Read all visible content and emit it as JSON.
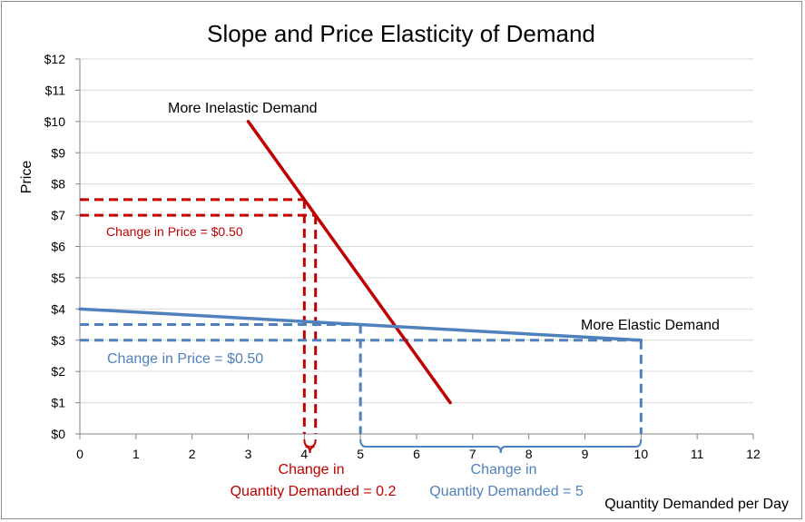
{
  "chart_data": {
    "type": "line",
    "title": "Slope and Price Elasticity of Demand",
    "xlabel": "Quantity Demanded per Day",
    "ylabel": "Price",
    "xlim": [
      0,
      12
    ],
    "ylim": [
      0,
      12
    ],
    "x_ticks": [
      "0",
      "1",
      "2",
      "3",
      "4",
      "5",
      "6",
      "7",
      "8",
      "9",
      "10",
      "11",
      "12"
    ],
    "y_ticks": [
      "$0",
      "$1",
      "$2",
      "$3",
      "$4",
      "$5",
      "$6",
      "$7",
      "$8",
      "$9",
      "$10",
      "$11",
      "$12"
    ],
    "grid": "horizontal",
    "colors": {
      "inelastic": "#c00000",
      "elastic": "#4f81bd",
      "grid": "#d9d9d9",
      "axis": "#868686"
    },
    "series": [
      {
        "name": "More Inelastic Demand",
        "color": "#c00000",
        "points": [
          [
            3,
            10
          ],
          [
            6.6,
            1
          ]
        ]
      },
      {
        "name": "More Elastic Demand",
        "color": "#4f81bd",
        "points": [
          [
            0,
            4
          ],
          [
            10,
            3
          ]
        ]
      }
    ],
    "guides": [
      {
        "series": "More Inelastic Demand",
        "color": "#c00000",
        "price_levels": [
          7.5,
          7
        ],
        "quantities": [
          4,
          4.2
        ]
      },
      {
        "series": "More Elastic Demand",
        "color": "#4f81bd",
        "price_levels": [
          3.5,
          3
        ],
        "quantities": [
          5,
          10
        ]
      }
    ],
    "annotations": {
      "inelastic_label": "More Inelastic Demand",
      "elastic_label": "More Elastic Demand",
      "red_price_change": "Change in Price = $0.50",
      "blue_price_change": "Change in Price = $0.50",
      "red_qty_line1": "Change in",
      "red_qty_line2": "Quantity Demanded = 0.2",
      "blue_qty_line1": "Change in",
      "blue_qty_line2": "Quantity Demanded = 5"
    }
  }
}
